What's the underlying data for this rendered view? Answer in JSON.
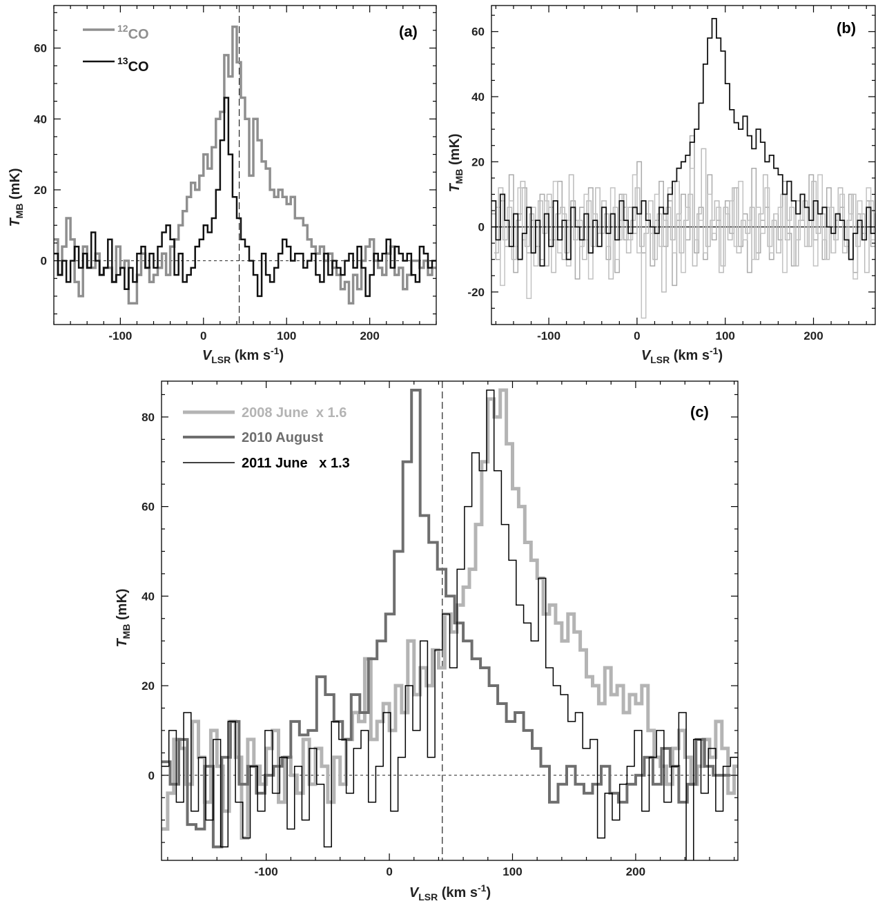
{
  "chart_data": [
    {
      "id": "a",
      "type": "line",
      "step": true,
      "panel_label": "(a)",
      "xlabel": {
        "main": "V",
        "sub": "LSR",
        "unit": " (km s",
        "sup": "-1",
        "close": ")"
      },
      "ylabel": {
        "main": "T",
        "sub": "MB",
        "unit": " (mK)"
      },
      "xlim": [
        -180,
        280
      ],
      "ylim": [
        -18,
        72
      ],
      "xticks": [
        -100,
        0,
        100,
        200
      ],
      "yticks": [
        0,
        20,
        40,
        60
      ],
      "xtick_labels": [
        "-100",
        "0",
        "100",
        "200"
      ],
      "ytick_labels": [
        "0",
        "20",
        "40",
        "60"
      ],
      "vline": 43,
      "hline": {
        "y": 0,
        "style": "dotted"
      },
      "legend": "top-left",
      "series": [
        {
          "name": "CO",
          "name_sup": "12",
          "color": "#8f8f8f",
          "width": 3.5,
          "x0": -180,
          "dx": 5,
          "values": [
            6,
            -4,
            4,
            12,
            6,
            -6,
            -10,
            4,
            -2,
            -2,
            2,
            -4,
            -2,
            -2,
            -6,
            4,
            -2,
            0,
            -12,
            -12,
            -4,
            2,
            -2,
            -6,
            -4,
            -2,
            2,
            -4,
            4,
            6,
            10,
            14,
            18,
            22,
            20,
            24,
            30,
            26,
            32,
            40,
            42,
            58,
            52,
            66,
            56,
            46,
            40,
            24,
            40,
            34,
            28,
            26,
            20,
            18,
            20,
            18,
            16,
            18,
            12,
            12,
            10,
            6,
            4,
            2,
            4,
            0,
            2,
            -2,
            -4,
            -8,
            -6,
            -12,
            -4,
            -8,
            0,
            4,
            6,
            0,
            -2,
            -4,
            2,
            4,
            -4,
            -2,
            -8,
            -4,
            0,
            0,
            -2,
            0,
            -4,
            -2
          ]
        },
        {
          "name": "CO",
          "name_sup": "13",
          "color": "#111111",
          "width": 2.5,
          "x0": -180,
          "dx": 5,
          "values": [
            2,
            -4,
            0,
            -6,
            0,
            4,
            -2,
            2,
            -2,
            8,
            0,
            -4,
            -2,
            6,
            -6,
            -4,
            -2,
            -8,
            -2,
            -6,
            2,
            4,
            -2,
            2,
            -2,
            4,
            8,
            10,
            6,
            -4,
            2,
            -6,
            -4,
            -2,
            4,
            6,
            10,
            8,
            12,
            20,
            34,
            46,
            30,
            18,
            12,
            6,
            4,
            0,
            -4,
            -10,
            2,
            -4,
            -6,
            -2,
            2,
            6,
            4,
            0,
            2,
            2,
            -2,
            0,
            2,
            -4,
            -6,
            2,
            -4,
            0,
            -2,
            -4,
            0,
            2,
            -2,
            4,
            -2,
            -10,
            -4,
            2,
            0,
            2,
            6,
            -2,
            4,
            2,
            0,
            2,
            -4,
            -6,
            4,
            2,
            -2,
            0
          ]
        }
      ]
    },
    {
      "id": "b",
      "type": "line",
      "step": true,
      "panel_label": "(b)",
      "xlabel": {
        "main": "V",
        "sub": "LSR",
        "unit": " (km s",
        "sup": "-1",
        "close": ")"
      },
      "ylabel": {
        "main": "T",
        "sub": "MB",
        "unit": " (mK)"
      },
      "xlim": [
        -165,
        270
      ],
      "ylim": [
        -30,
        68
      ],
      "xticks": [
        -100,
        0,
        100,
        200
      ],
      "yticks": [
        -20,
        0,
        20,
        40,
        60
      ],
      "xtick_labels": [
        "-100",
        "0",
        "100",
        "200"
      ],
      "ytick_labels": [
        "-20",
        "0",
        "20",
        "40",
        "60"
      ],
      "hline": {
        "y": 0,
        "style": "solid"
      },
      "series": [
        {
          "color": "#aaaaaa",
          "width": 1.5,
          "x0": -165,
          "dx": 5,
          "values": [
            4,
            -10,
            8,
            -6,
            16,
            -14,
            4,
            12,
            -8,
            2,
            -6,
            10,
            -12,
            6,
            -4,
            14,
            -10,
            2,
            8,
            -16,
            6,
            -4,
            12,
            -6,
            -2,
            8,
            -10,
            4,
            -14,
            10,
            -4,
            6,
            -2,
            20,
            -8,
            4,
            -12,
            2,
            14,
            -6,
            8,
            -18,
            2,
            10,
            -4,
            28,
            -8,
            6,
            -10,
            16,
            -4,
            2,
            -12,
            8,
            -2,
            12,
            -6,
            4,
            -14,
            18,
            -8,
            2,
            6,
            -10,
            4,
            -4,
            14,
            -2,
            -12,
            8,
            2,
            -6,
            16,
            -4,
            4,
            -10,
            12,
            -8,
            2,
            6,
            -4,
            10,
            -14,
            4,
            -2,
            8,
            -6,
            20,
            -4,
            2,
            -10,
            14,
            -6,
            4,
            -2,
            10,
            -8,
            6
          ]
        },
        {
          "color": "#bbbbbb",
          "width": 1.5,
          "x0": -162,
          "dx": 5,
          "values": [
            -8,
            12,
            -4,
            6,
            -10,
            2,
            14,
            -6,
            4,
            -12,
            8,
            -2,
            10,
            -14,
            4,
            6,
            -8,
            16,
            -4,
            2,
            -10,
            8,
            -6,
            12,
            -2,
            4,
            -16,
            6,
            -4,
            10,
            -8,
            2,
            12,
            -6,
            -2,
            8,
            -10,
            4,
            -20,
            6,
            -4,
            14,
            -8,
            2,
            10,
            -12,
            4,
            24,
            -6,
            2,
            8,
            -14,
            6,
            -4,
            12,
            -8,
            2,
            -2,
            6,
            -10,
            4,
            16,
            -6,
            2,
            -8,
            10,
            -4,
            6,
            -12,
            2,
            8,
            -6,
            14,
            -2,
            4,
            -10,
            6,
            -4,
            12,
            -8,
            2,
            10,
            -6,
            4,
            -14,
            8,
            -2,
            6,
            -10,
            16,
            -4,
            2,
            -8,
            12,
            -6,
            4
          ]
        },
        {
          "color": "#c2c2c2",
          "width": 1.5,
          "x0": -160,
          "dx": 5,
          "values": [
            6,
            -18,
            2,
            8,
            -6,
            12,
            -4,
            -22,
            6,
            2,
            -10,
            8,
            -4,
            14,
            -8,
            4,
            -12,
            6,
            2,
            -6,
            10,
            -16,
            4,
            -2,
            8,
            -6,
            12,
            -10,
            2,
            6,
            -4,
            16,
            -8,
            -28,
            4,
            -2,
            10,
            -6,
            2,
            12,
            -8,
            4,
            -14,
            6,
            18,
            -4,
            2,
            -8,
            10,
            -2,
            6,
            -12,
            4,
            8,
            -6,
            14,
            -4,
            2,
            -10,
            6,
            -2,
            12,
            -8,
            4,
            6,
            -14,
            2,
            8,
            -4,
            10,
            -6,
            2,
            -12,
            16,
            -4,
            6,
            -8,
            2,
            10,
            -6,
            4,
            -16,
            8,
            -2,
            12,
            -4,
            6,
            -10,
            2,
            8,
            -6,
            14,
            -4,
            2,
            -8,
            6
          ]
        },
        {
          "color": "#111111",
          "width": 1.8,
          "x0": -165,
          "dx": 5,
          "values": [
            8,
            -4,
            10,
            2,
            -6,
            4,
            -10,
            -2,
            6,
            -8,
            2,
            -12,
            4,
            -6,
            8,
            -4,
            2,
            -10,
            6,
            0,
            -4,
            4,
            -8,
            2,
            -6,
            6,
            -2,
            4,
            -4,
            8,
            2,
            -2,
            6,
            4,
            8,
            2,
            0,
            -2,
            6,
            4,
            10,
            14,
            18,
            20,
            22,
            26,
            30,
            38,
            50,
            58,
            64,
            58,
            54,
            44,
            36,
            32,
            30,
            34,
            28,
            24,
            30,
            26,
            20,
            22,
            18,
            16,
            10,
            14,
            8,
            4,
            10,
            6,
            2,
            8,
            4,
            6,
            0,
            -2,
            4,
            2,
            -4,
            -10,
            -2,
            2,
            -4,
            6,
            -2,
            4,
            8,
            -6,
            2,
            -4,
            6,
            10,
            -2,
            4,
            -6
          ]
        }
      ]
    },
    {
      "id": "c",
      "type": "line",
      "step": true,
      "panel_label": "(c)",
      "xlabel": {
        "main": "V",
        "sub": "LSR",
        "unit": " (km s",
        "sup": "-1",
        "close": ")"
      },
      "ylabel": {
        "main": "T",
        "sub": "MB",
        "unit": " (mK)"
      },
      "xlim": [
        -185,
        283
      ],
      "ylim": [
        -19,
        88
      ],
      "xticks": [
        -100,
        0,
        100,
        200
      ],
      "yticks": [
        0,
        20,
        40,
        60,
        80
      ],
      "xtick_labels": [
        "-100",
        "0",
        "100",
        "200"
      ],
      "ytick_labels": [
        "0",
        "20",
        "40",
        "60",
        "80"
      ],
      "vline": 43,
      "hline": {
        "y": 0,
        "style": "dotted"
      },
      "legend": "top-left",
      "series": [
        {
          "name": "2008 June  x 1.6",
          "color": "#b4b4b4",
          "width": 5,
          "x0": -185,
          "dx": 5,
          "values": [
            -12,
            -4,
            8,
            6,
            -2,
            12,
            4,
            -6,
            10,
            2,
            -8,
            12,
            4,
            -14,
            8,
            2,
            -2,
            6,
            10,
            -6,
            4,
            0,
            -4,
            8,
            -2,
            6,
            2,
            -6,
            4,
            -2,
            8,
            14,
            12,
            26,
            8,
            12,
            16,
            10,
            20,
            14,
            30,
            18,
            24,
            20,
            28,
            24,
            36,
            32,
            38,
            42,
            46,
            56,
            70,
            84,
            80,
            86,
            74,
            64,
            60,
            52,
            48,
            44,
            36,
            38,
            34,
            30,
            36,
            32,
            28,
            22,
            20,
            16,
            24,
            18,
            20,
            14,
            18,
            16,
            20,
            10,
            4,
            2,
            -2,
            6,
            10,
            4,
            -2,
            2,
            8,
            4,
            12,
            6,
            -4,
            2,
            10,
            6,
            -2,
            4,
            8,
            2,
            6,
            -6,
            4,
            2,
            8,
            -2,
            6,
            4,
            -6,
            2,
            10,
            4,
            2,
            6
          ]
        },
        {
          "name": "2010 August",
          "color": "#6e6e6e",
          "width": 4,
          "x0": -185,
          "dx": 7,
          "values": [
            3,
            -2,
            8,
            -11,
            -12,
            2,
            -16,
            4,
            12,
            -2,
            2,
            -4,
            0,
            2,
            4,
            12,
            9,
            10,
            22,
            18,
            12,
            8,
            18,
            14,
            26,
            30,
            36,
            50,
            70,
            86,
            58,
            52,
            46,
            40,
            34,
            30,
            26,
            24,
            20,
            16,
            12,
            14,
            10,
            6,
            2,
            -6,
            -2,
            2,
            -2,
            -4,
            -2,
            2,
            -4,
            -6,
            -2,
            0,
            4,
            -2,
            6,
            2,
            -6,
            -2,
            8,
            2,
            0,
            0
          ]
        },
        {
          "name": "2011 June   x 1.3",
          "color": "#000000",
          "width": 1.5,
          "x0": -185,
          "dx": 6,
          "values": [
            2,
            10,
            -6,
            14,
            -8,
            4,
            -10,
            8,
            -16,
            12,
            -6,
            -14,
            2,
            -8,
            10,
            -4,
            4,
            -12,
            2,
            -10,
            6,
            -2,
            -16,
            12,
            8,
            -4,
            6,
            10,
            -6,
            2,
            14,
            -8,
            4,
            20,
            10,
            30,
            4,
            28,
            36,
            24,
            46,
            60,
            72,
            68,
            86,
            68,
            56,
            48,
            38,
            34,
            30,
            44,
            24,
            20,
            18,
            12,
            14,
            6,
            8,
            -14,
            -4,
            -10,
            -2,
            2,
            10,
            -8,
            4,
            10,
            -6,
            2,
            14,
            -20,
            8,
            -4,
            6,
            -8,
            2,
            4,
            -10,
            8,
            2,
            -4,
            6,
            4
          ]
        }
      ]
    }
  ]
}
